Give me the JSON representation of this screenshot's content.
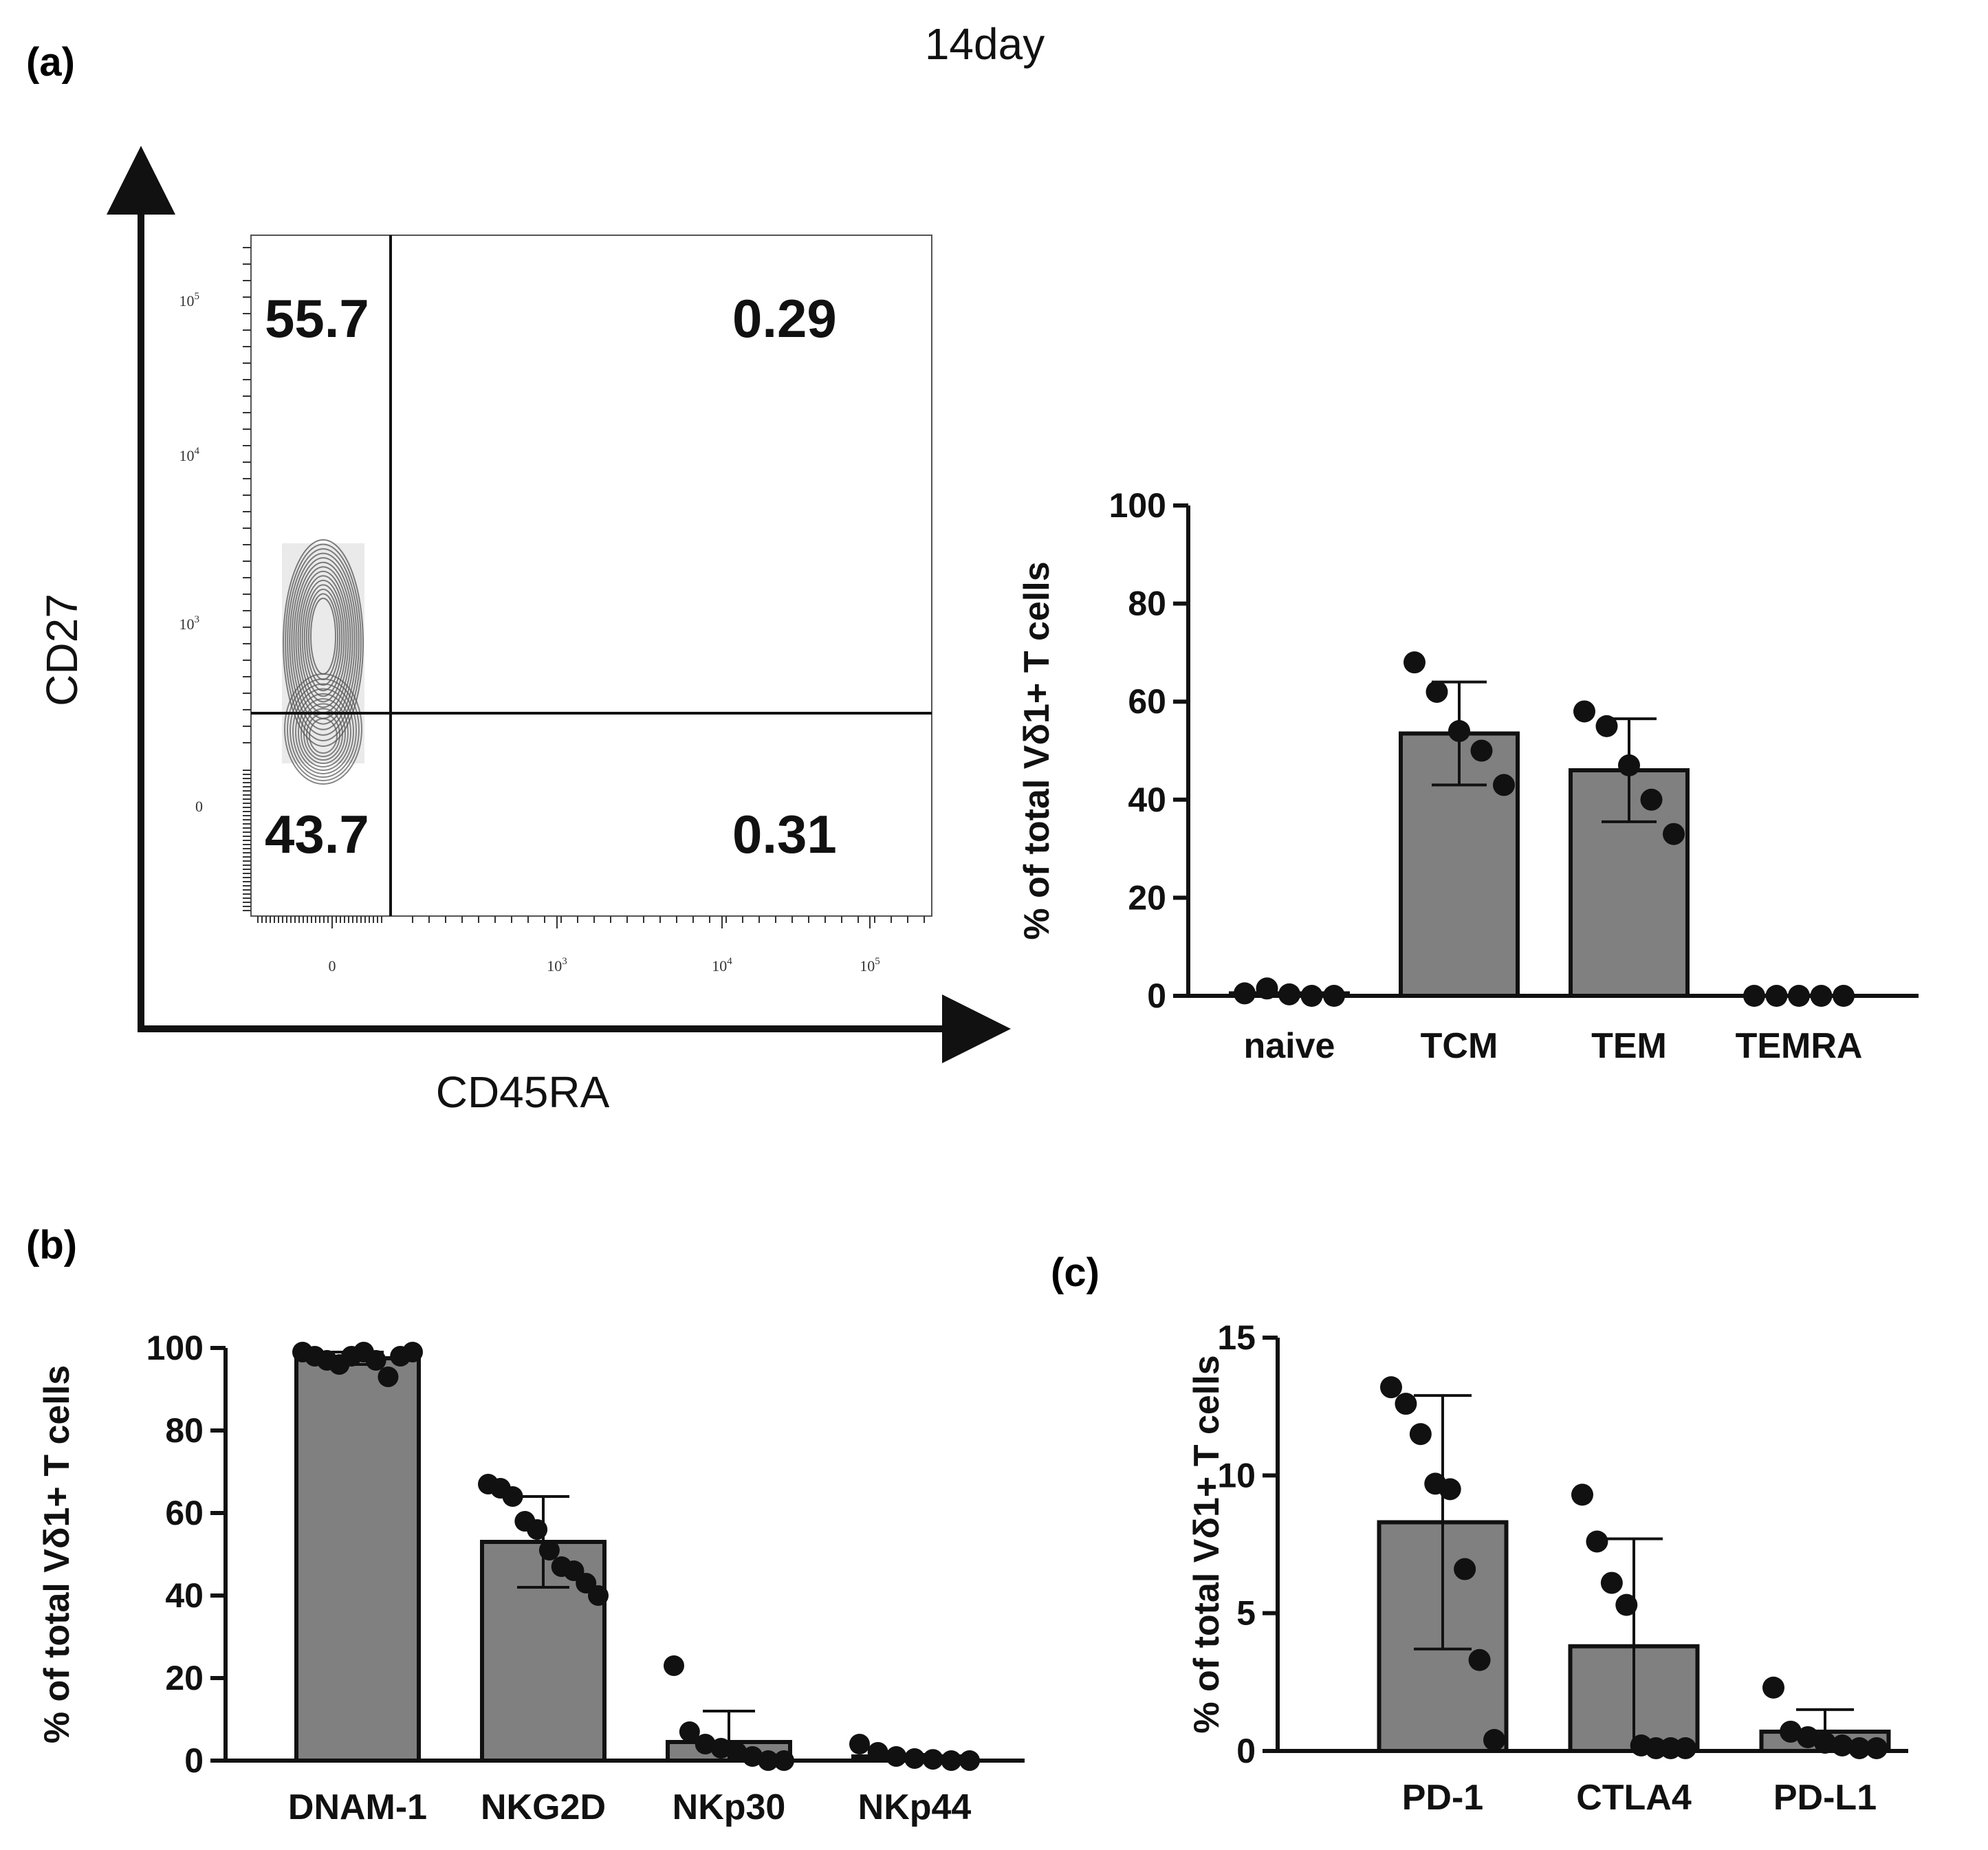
{
  "title": "14day",
  "panel_labels": {
    "a": "(a)",
    "b": "(b)",
    "c": "(c)"
  },
  "flow": {
    "xlabel": "CD45RA",
    "ylabel": "CD27",
    "quadrants": {
      "upper_left": "55.7",
      "upper_right": "0.29",
      "lower_left": "43.7",
      "lower_right": "0.31"
    },
    "x_ticks": [
      {
        "base": "0",
        "exp": ""
      },
      {
        "base": "10",
        "exp": "3"
      },
      {
        "base": "10",
        "exp": "4"
      },
      {
        "base": "10",
        "exp": "5"
      }
    ],
    "y_ticks": [
      {
        "base": "0",
        "exp": ""
      },
      {
        "base": "10",
        "exp": "3"
      },
      {
        "base": "10",
        "exp": "4"
      },
      {
        "base": "10",
        "exp": "5"
      }
    ],
    "contour_color": "#555555"
  },
  "chart_data": [
    {
      "type": "bar",
      "panel": "a",
      "categories": [
        "naive",
        "TCM",
        "TEM",
        "TEMRA"
      ],
      "values": [
        0.5,
        53.5,
        46,
        0
      ],
      "error": [
        0,
        10.5,
        10.5,
        0
      ],
      "points": [
        [
          0.5,
          1.5,
          0.3,
          0,
          0
        ],
        [
          68,
          62,
          54,
          50,
          43
        ],
        [
          58,
          55,
          47,
          40,
          33
        ],
        [
          0,
          0,
          0,
          0,
          0
        ]
      ],
      "ylabel": "% of total Vδ1+ T cells",
      "ylim": [
        0,
        100
      ],
      "yticks": [
        0,
        20,
        40,
        60,
        80,
        100
      ],
      "bar_color": "#808080"
    },
    {
      "type": "bar",
      "panel": "b",
      "categories": [
        "DNAM-1",
        "NKG2D",
        "NKp30",
        "NKp44"
      ],
      "values": [
        97.5,
        53,
        4.5,
        1
      ],
      "error": [
        1.5,
        11,
        7.5,
        0.5
      ],
      "points": [
        [
          99,
          98,
          97,
          96,
          98,
          99,
          97,
          93,
          98,
          99
        ],
        [
          67,
          66,
          64,
          58,
          56,
          51,
          47,
          46,
          43,
          40
        ],
        [
          23,
          7,
          4,
          3,
          2,
          1,
          0,
          0
        ],
        [
          4,
          2,
          1,
          0.5,
          0.3,
          0,
          0
        ]
      ],
      "ylabel": "% of total Vδ1+ T cells",
      "ylim": [
        0,
        100
      ],
      "yticks": [
        0,
        20,
        40,
        60,
        80,
        100
      ],
      "bar_color": "#808080"
    },
    {
      "type": "bar",
      "panel": "c",
      "categories": [
        "PD-1",
        "CTLA4",
        "PD-L1"
      ],
      "values": [
        8.3,
        3.8,
        0.7
      ],
      "error": [
        4.6,
        3.9,
        0.8
      ],
      "points": [
        [
          13.2,
          12.6,
          11.5,
          9.7,
          9.5,
          6.6,
          3.3,
          0.4
        ],
        [
          9.3,
          7.6,
          6.1,
          5.3,
          0.2,
          0.1,
          0.1,
          0.1
        ],
        [
          2.3,
          0.7,
          0.5,
          0.3,
          0.2,
          0.1,
          0.1
        ]
      ],
      "ylabel": "% of total Vδ1+ T cells",
      "ylim": [
        0,
        15
      ],
      "yticks": [
        0,
        5,
        10,
        15
      ],
      "bar_color": "#808080"
    }
  ]
}
